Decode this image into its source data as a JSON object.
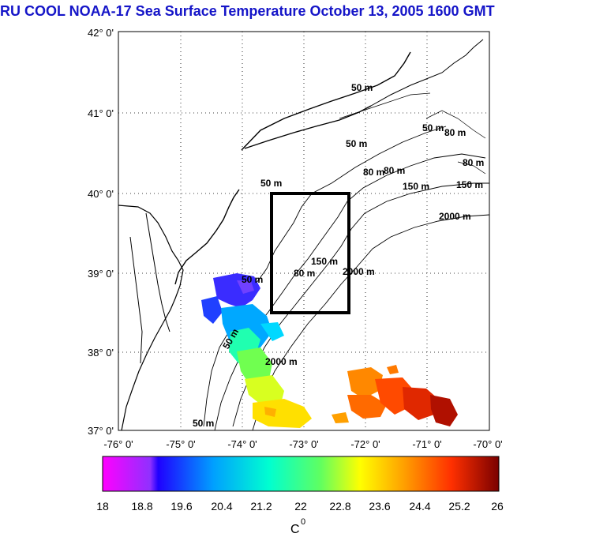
{
  "title": "RU COOL  NOAA-17 Sea Surface Temperature October 13, 2005 1600 GMT",
  "lat_labels": [
    "42° 0'",
    "41° 0'",
    "40° 0'",
    "39° 0'",
    "38° 0'",
    "37° 0'"
  ],
  "lon_labels": [
    "-76° 0'",
    "-75° 0'",
    "-74° 0'",
    "-73° 0'",
    "-72° 0'",
    "-71° 0'",
    "-70° 0'"
  ],
  "map_extent": {
    "lon": [
      -76,
      -70
    ],
    "lat": [
      37,
      42
    ]
  },
  "study_box": {
    "lon": [
      -73.5,
      -72.25
    ],
    "lat": [
      38.5,
      40.0
    ]
  },
  "depth_labels": {
    "m50_a": "50 m",
    "m50_b": "50 m",
    "m50_c": "50 m",
    "m50_d": "50 m",
    "m50_e": "50 m",
    "m50_f": "50 m",
    "m50_g": "50 m",
    "m80_a": "80 m",
    "m80_b": "80 m",
    "m80_c": "80 m",
    "m80_d": "80 m",
    "m80_e": "80 m",
    "m150_a": "150 m",
    "m150_b": "150 m",
    "m150_c": "150 m",
    "m2000_a": "2000 m",
    "m2000_b": "2000 m",
    "m2000_c": "2000 m"
  },
  "colorbar": {
    "ticks": [
      "18",
      "18.8",
      "19.6",
      "20.4",
      "21.2",
      "22",
      "22.8",
      "23.6",
      "24.4",
      "25.2",
      "26"
    ],
    "min": 18,
    "max": 26,
    "unit_label": "C",
    "unit_sup": "0",
    "stops": [
      "#ff00ff",
      "#2000ff",
      "#00a0ff",
      "#00ffd0",
      "#60ff60",
      "#ffff00",
      "#ffa000",
      "#ff3000",
      "#7a0000"
    ]
  }
}
